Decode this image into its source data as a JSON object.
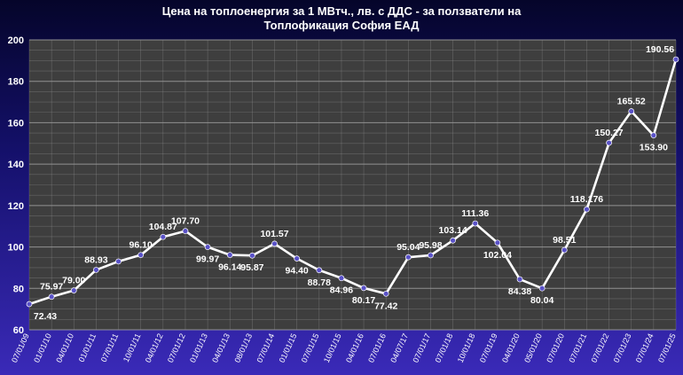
{
  "chart_data": {
    "type": "line",
    "title_lines": [
      "Цена на топлоенергия за 1 МВтч., лв. с ДДС - за ползватели на",
      "Топлофикация София ЕАД"
    ],
    "xlabel": "",
    "ylabel": "",
    "ylim": [
      60,
      200
    ],
    "yticks": [
      60,
      80,
      100,
      120,
      140,
      160,
      180,
      200
    ],
    "grid": true,
    "legend": "none",
    "colors": {
      "plot_bg": "#3e3e3e",
      "grid": "#9a9a9a",
      "line": "#ffffff",
      "marker": "#5a52c8"
    },
    "categories": [
      "07/01/09",
      "01/01/10",
      "04/01/10",
      "01/01/11",
      "07/01/11",
      "10/01/11",
      "04/01/12",
      "07/01/12",
      "01/01/13",
      "04/01/13",
      "08/01/13",
      "07/01/14",
      "01/01/15",
      "07/01/15",
      "10/01/15",
      "04/01/16",
      "07/01/16",
      "04/07/17",
      "07/01/17",
      "07/01/18",
      "10/01/18",
      "07/01/19",
      "04/01/20",
      "05/01/20",
      "07/01/20",
      "07/01/21",
      "07/01/22",
      "07/01/23",
      "07/01/24",
      "07/01/25"
    ],
    "values": [
      72.43,
      75.97,
      79.0,
      88.93,
      93.0,
      96.1,
      104.87,
      107.7,
      99.97,
      96.14,
      95.87,
      101.57,
      94.4,
      88.78,
      84.96,
      80.17,
      77.42,
      95.04,
      95.98,
      103.14,
      111.36,
      102.04,
      84.38,
      80.04,
      98.51,
      118.176,
      150.27,
      165.52,
      153.9,
      190.56
    ],
    "labels": [
      "72.43",
      "75.97",
      "79.00",
      "88.93",
      "",
      "96.10",
      "104.87",
      "107.70",
      "99.97",
      "96.14",
      "95.87",
      "101.57",
      "94.40",
      "88.78",
      "84.96",
      "80.17",
      "77.42",
      "95.04",
      "95.98",
      "103.14",
      "111.36",
      "102.04",
      "84.38",
      "80.04",
      "98.51",
      "118.176",
      "150.27",
      "165.52",
      "153.90",
      "190.56"
    ],
    "label_pos": [
      "below",
      "above",
      "above",
      "above",
      "above",
      "above",
      "above",
      "above",
      "below",
      "below",
      "below",
      "above",
      "below",
      "below",
      "below",
      "below",
      "below",
      "above",
      "above",
      "above",
      "above",
      "below",
      "below",
      "below",
      "above",
      "above",
      "above",
      "above",
      "below",
      "above"
    ]
  }
}
